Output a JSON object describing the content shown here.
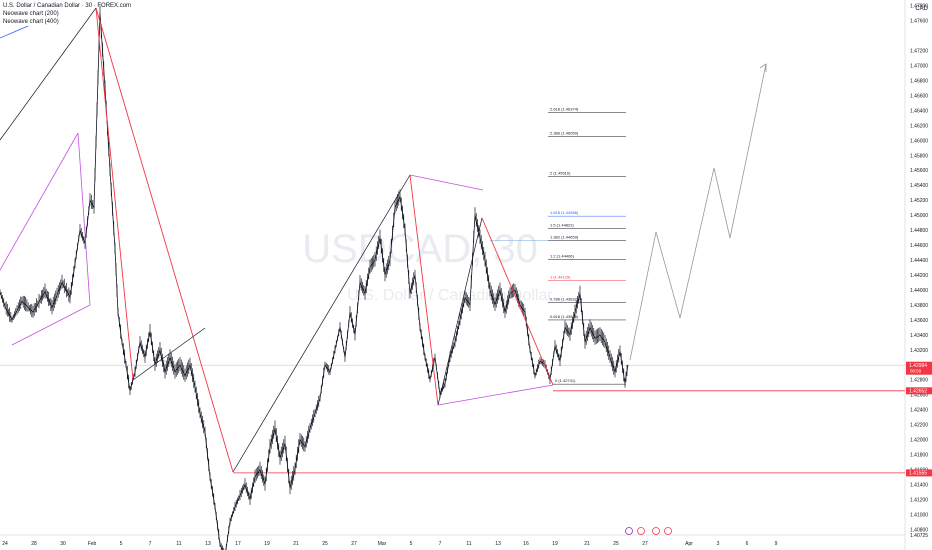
{
  "header": {
    "symbol_title": "U.S. Dollar / Canadian Dollar · 30 · FOREX.com",
    "study1": "Neowave chart (200)",
    "study2": "Neowave chart (400)",
    "currency": "CAD"
  },
  "watermark": {
    "symbol": "USDCAD, 30",
    "name": "U.S. Dollar / Canadian Dollar"
  },
  "colors": {
    "price": "#131722",
    "red": "#f23645",
    "purple": "#c44fe0",
    "black": "#131722",
    "gray": "#9598a1",
    "blue": "#2962ff"
  },
  "chart_data": {
    "type": "line",
    "ylim": [
      1.40725,
      1.47875
    ],
    "y_ticks": [
      "1.47800",
      "1.47600",
      "1.47200",
      "1.47000",
      "1.46800",
      "1.46600",
      "1.46400",
      "1.46200",
      "1.46000",
      "1.45800",
      "1.45600",
      "1.45400",
      "1.45200",
      "1.45000",
      "1.44800",
      "1.44600",
      "1.44400",
      "1.44200",
      "1.44000",
      "1.43800",
      "1.43600",
      "1.43400",
      "1.43200",
      "1.43000",
      "1.42800",
      "1.42600",
      "1.42400",
      "1.42200",
      "1.42000",
      "1.41800",
      "1.41600",
      "1.41400",
      "1.41200",
      "1.41000",
      "1.40800",
      "1.40725"
    ],
    "x_ticks": [
      "24",
      "28",
      "30",
      "Feb",
      "5",
      "7",
      "11",
      "13",
      "17",
      "19",
      "21",
      "25",
      "27",
      "Mar",
      "5",
      "7",
      "11",
      "13",
      "16",
      "19",
      "21",
      "25",
      "27",
      "Apr",
      "3",
      "6",
      "9"
    ],
    "price_labels": [
      {
        "text": "1.42994",
        "sub": "00:59",
        "value": 1.42994,
        "color": "#f23645"
      },
      {
        "text": "1.42652",
        "value": 1.42652,
        "color": "#f23645"
      },
      {
        "text": "1.41555",
        "value": 1.41555,
        "color": "#f23645"
      }
    ],
    "series": [
      {
        "name": "USDCAD 30",
        "x": [
          0,
          5,
          12,
          22,
          33,
          45,
          52,
          62,
          70,
          80,
          85,
          90,
          94,
          97,
          100,
          105,
          110,
          115,
          118,
          122,
          126,
          130,
          135,
          140,
          145,
          150,
          155,
          160,
          165,
          170,
          175,
          180,
          185,
          190,
          195,
          200,
          205,
          210,
          215,
          220,
          225,
          230,
          235,
          240,
          245,
          250,
          255,
          260,
          265,
          270,
          275,
          280,
          285,
          290,
          295,
          300,
          305,
          310,
          315,
          320,
          325,
          330,
          335,
          340,
          345,
          350,
          355,
          360,
          365,
          370,
          375,
          380,
          385,
          390,
          395,
          400,
          405,
          410,
          415,
          420,
          425,
          430,
          435,
          440,
          445,
          450,
          455,
          460,
          465,
          470,
          475,
          480,
          485,
          490,
          495,
          500,
          505,
          510,
          515,
          520,
          525,
          530,
          535,
          540,
          545,
          550,
          555,
          560,
          565,
          570,
          575,
          580,
          585,
          590,
          595,
          600,
          605,
          610,
          615,
          620,
          625,
          628
        ],
        "values": [
          1.4397,
          1.4378,
          1.436,
          1.4385,
          1.437,
          1.4398,
          1.4376,
          1.441,
          1.439,
          1.448,
          1.4462,
          1.452,
          1.451,
          1.464,
          1.477,
          1.467,
          1.456,
          1.4455,
          1.437,
          1.433,
          1.43,
          1.4265,
          1.429,
          1.433,
          1.431,
          1.4345,
          1.43,
          1.432,
          1.429,
          1.431,
          1.429,
          1.43,
          1.4285,
          1.43,
          1.427,
          1.4235,
          1.421,
          1.415,
          1.411,
          1.406,
          1.4045,
          1.409,
          1.411,
          1.4125,
          1.414,
          1.412,
          1.415,
          1.416,
          1.414,
          1.419,
          1.4215,
          1.4175,
          1.4195,
          1.4135,
          1.416,
          1.42,
          1.419,
          1.4215,
          1.4235,
          1.4255,
          1.43,
          1.429,
          1.432,
          1.435,
          1.431,
          1.437,
          1.434,
          1.441,
          1.4395,
          1.443,
          1.444,
          1.447,
          1.442,
          1.444,
          1.451,
          1.4525,
          1.448,
          1.4395,
          1.442,
          1.435,
          1.431,
          1.428,
          1.431,
          1.426,
          1.4275,
          1.431,
          1.433,
          1.436,
          1.439,
          1.438,
          1.45,
          1.447,
          1.444,
          1.44,
          1.438,
          1.44,
          1.437,
          1.4395,
          1.44,
          1.438,
          1.437,
          1.432,
          1.4285,
          1.4305,
          1.43,
          1.428,
          1.4325,
          1.4305,
          1.435,
          1.434,
          1.437,
          1.4395,
          1.433,
          1.435,
          1.4335,
          1.434,
          1.433,
          1.431,
          1.429,
          1.4318,
          1.4275,
          1.43
        ]
      }
    ],
    "fib_levels": [
      {
        "ratio": "2.618",
        "value": 1.46374,
        "label": "2.618 (1.46374)",
        "color": "#131722"
      },
      {
        "ratio": "2.386",
        "value": 1.4605,
        "label": "2.386 (1.46050)",
        "color": "#131722"
      },
      {
        "ratio": "2",
        "value": 1.45516,
        "label": "2 (1.45516)",
        "color": "#131722"
      },
      {
        "ratio": "1.618",
        "value": 1.44986,
        "label": "1.618 (1.44986)",
        "color": "#2962ff"
      },
      {
        "ratio": "1.5",
        "value": 1.44822,
        "label": "1.5 (1.44822)",
        "color": "#131722"
      },
      {
        "ratio": "1.382",
        "value": 1.44659,
        "label": "1.382 (1.44659)",
        "color": "#131722"
      },
      {
        "ratio": "1.2",
        "value": 1.44406,
        "label": "1.2 (1.44406)",
        "color": "#131722"
      },
      {
        "ratio": "1",
        "value": 1.44129,
        "label": "1 (1.44129)",
        "color": "#f23645"
      },
      {
        "ratio": "0.786",
        "value": 1.43832,
        "label": "0.786 (1.43832)",
        "color": "#131722"
      },
      {
        "ratio": "0.618",
        "value": 1.43599,
        "label": "0.618 (1.43599)",
        "color": "#131722"
      },
      {
        "ratio": "0",
        "value": 1.42741,
        "label": "0 (1.42741)",
        "color": "#131722"
      }
    ]
  }
}
